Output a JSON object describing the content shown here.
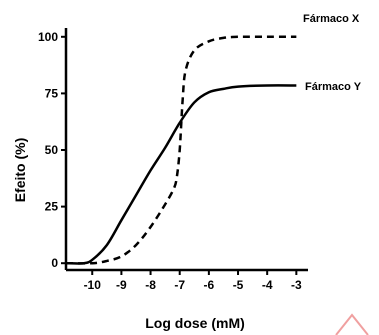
{
  "chart_data": {
    "type": "line",
    "title": "",
    "xlabel": "Log dose (mM)",
    "ylabel": "Efeito (%)",
    "xlim": [
      -10.9,
      -2.6
    ],
    "ylim": [
      -3,
      103
    ],
    "xticks": [
      -10,
      -9,
      -8,
      -7,
      -6,
      -5,
      -4,
      -3
    ],
    "yticks": [
      0,
      25,
      50,
      75,
      100
    ],
    "xtick_labels": [
      "-10",
      "-9",
      "-8",
      "-7",
      "-6",
      "-5",
      "-4",
      "-3"
    ],
    "ytick_labels": [
      "0",
      "25",
      "50",
      "75",
      "100"
    ],
    "grid": false,
    "legend": "inline",
    "series": [
      {
        "name": "Fármaco X",
        "style": "dashed",
        "color": "#000000",
        "x": [
          -10.9,
          -10.0,
          -9.5,
          -9.0,
          -8.5,
          -8.0,
          -7.5,
          -7.2,
          -7.1,
          -7.0,
          -6.9,
          -6.8,
          -6.5,
          -6.0,
          -5.5,
          -5.0,
          -4.0,
          -3.0
        ],
        "y": [
          0,
          0,
          1,
          3,
          8,
          16,
          26,
          33,
          38,
          50,
          72,
          85,
          94,
          98,
          99.5,
          100,
          100,
          100
        ]
      },
      {
        "name": "Fármaco Y",
        "style": "solid",
        "color": "#000000",
        "x": [
          -10.9,
          -10.3,
          -10.0,
          -9.5,
          -9.0,
          -8.5,
          -8.0,
          -7.5,
          -7.0,
          -6.5,
          -6.0,
          -5.5,
          -5.0,
          -4.0,
          -3.0
        ],
        "y": [
          0,
          0,
          1.5,
          8,
          19,
          30,
          41,
          51,
          62,
          71,
          75.5,
          77,
          78,
          78.5,
          78.5
        ]
      }
    ]
  },
  "colors": {
    "line": "#000000",
    "watermark": "#f0a0a0"
  }
}
